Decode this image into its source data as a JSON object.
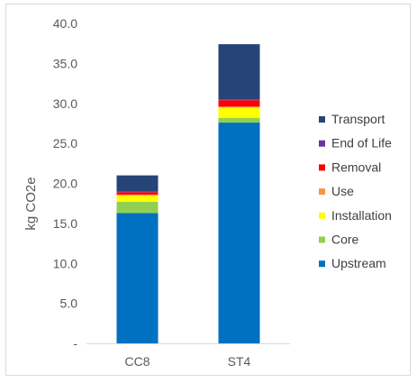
{
  "chart_data": {
    "type": "bar",
    "stacked": true,
    "title": "",
    "xlabel": "",
    "ylabel": "kg CO2e",
    "ylim": [
      0,
      40
    ],
    "yticks": [
      "-",
      "5.0",
      "10.0",
      "15.0",
      "20.0",
      "25.0",
      "30.0",
      "35.0",
      "40.0"
    ],
    "grid": false,
    "legend": "right",
    "categories": [
      "CC8",
      "ST4"
    ],
    "series": [
      {
        "name": "Upstream",
        "color": "#0070C0",
        "values": [
          16.3,
          27.6
        ]
      },
      {
        "name": "Core",
        "color": "#92D050",
        "values": [
          1.4,
          0.6
        ]
      },
      {
        "name": "Installation",
        "color": "#FFFF00",
        "values": [
          0.8,
          1.3
        ]
      },
      {
        "name": "Use",
        "color": "#F79646",
        "values": [
          0.1,
          0.1
        ]
      },
      {
        "name": "Removal",
        "color": "#FF0000",
        "values": [
          0.3,
          0.8
        ]
      },
      {
        "name": "End of Life",
        "color": "#7030A0",
        "values": [
          0.1,
          0.1
        ]
      },
      {
        "name": "Transport",
        "color": "#264478",
        "values": [
          2.0,
          6.9
        ]
      }
    ]
  }
}
